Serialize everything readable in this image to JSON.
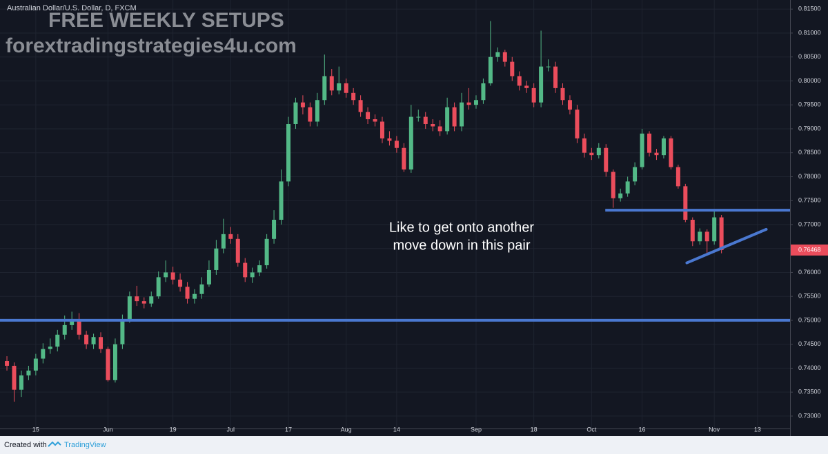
{
  "chart_data": {
    "type": "candlestick",
    "title": "Australian Dollar/U.S. Dollar, D, FXCM",
    "watermark": [
      "FREE WEEKLY SETUPS",
      "forextradingstrategies4u.com"
    ],
    "annotation": [
      "Like to get onto another",
      "move down in this pair"
    ],
    "footer": {
      "created": "Created with",
      "brand": "TradingView"
    },
    "up_color": "#53b987",
    "down_color": "#eb4d5c",
    "line_color": "#4a78d0",
    "xlim": [
      -0.96,
      108.5
    ],
    "ylim": [
      0.7274,
      0.8169
    ],
    "xticks": [
      {
        "value": 4,
        "label": "15"
      },
      {
        "value": 14,
        "label": "Jun"
      },
      {
        "value": 23,
        "label": "19"
      },
      {
        "value": 31,
        "label": "Jul"
      },
      {
        "value": 39,
        "label": "17"
      },
      {
        "value": 47,
        "label": "Aug"
      },
      {
        "value": 54,
        "label": "14"
      },
      {
        "value": 65,
        "label": "Sep"
      },
      {
        "value": 73,
        "label": "18"
      },
      {
        "value": 81,
        "label": "Oct"
      },
      {
        "value": 88,
        "label": "16"
      },
      {
        "value": 98,
        "label": "Nov"
      },
      {
        "value": 104,
        "label": "13"
      }
    ],
    "yticks": [
      {
        "value": 0.73,
        "label": "0.73000"
      },
      {
        "value": 0.735,
        "label": "0.73500"
      },
      {
        "value": 0.74,
        "label": "0.74000"
      },
      {
        "value": 0.745,
        "label": "0.74500"
      },
      {
        "value": 0.75,
        "label": "0.75000"
      },
      {
        "value": 0.755,
        "label": "0.75500"
      },
      {
        "value": 0.76,
        "label": "0.76000"
      },
      {
        "value": 0.765,
        "label": "0.76500"
      },
      {
        "value": 0.77,
        "label": "0.77000"
      },
      {
        "value": 0.775,
        "label": "0.77500"
      },
      {
        "value": 0.78,
        "label": "0.78000"
      },
      {
        "value": 0.785,
        "label": "0.78500"
      },
      {
        "value": 0.79,
        "label": "0.79000"
      },
      {
        "value": 0.795,
        "label": "0.79500"
      },
      {
        "value": 0.8,
        "label": "0.80000"
      },
      {
        "value": 0.805,
        "label": "0.80500"
      },
      {
        "value": 0.81,
        "label": "0.81000"
      },
      {
        "value": 0.815,
        "label": "0.81500"
      }
    ],
    "grid": true,
    "open": [
      0.7415,
      0.7405,
      0.7355,
      0.7385,
      0.7395,
      0.742,
      0.744,
      0.7445,
      0.747,
      0.749,
      0.75,
      0.747,
      0.745,
      0.7465,
      0.744,
      0.7375,
      0.745,
      0.75,
      0.755,
      0.754,
      0.7535,
      0.755,
      0.759,
      0.76,
      0.7585,
      0.757,
      0.7545,
      0.7555,
      0.7575,
      0.7605,
      0.765,
      0.768,
      0.767,
      0.762,
      0.759,
      0.76,
      0.7615,
      0.767,
      0.771,
      0.779,
      0.791,
      0.7955,
      0.7945,
      0.7915,
      0.796,
      0.801,
      0.798,
      0.7995,
      0.7975,
      0.796,
      0.7935,
      0.792,
      0.7915,
      0.788,
      0.7875,
      0.786,
      0.7815,
      0.7925,
      0.7925,
      0.791,
      0.7905,
      0.7895,
      0.7945,
      0.7905,
      0.7955,
      0.795,
      0.796,
      0.7995,
      0.805,
      0.806,
      0.804,
      0.801,
      0.799,
      0.7985,
      0.7955,
      0.803,
      0.803,
      0.7985,
      0.796,
      0.794,
      0.788,
      0.785,
      0.7845,
      0.786,
      0.781,
      0.7755,
      0.7765,
      0.779,
      0.782,
      0.789,
      0.785,
      0.7845,
      0.788,
      0.782,
      0.778,
      0.771,
      0.7665,
      0.7685,
      0.7665,
      0.7715
    ],
    "high": [
      0.7425,
      0.7412,
      0.7395,
      0.7405,
      0.743,
      0.7452,
      0.7462,
      0.748,
      0.751,
      0.7518,
      0.7515,
      0.7478,
      0.7472,
      0.7475,
      0.7445,
      0.7462,
      0.7512,
      0.756,
      0.7572,
      0.7548,
      0.756,
      0.7602,
      0.7625,
      0.7612,
      0.7598,
      0.758,
      0.7565,
      0.759,
      0.7625,
      0.7668,
      0.7712,
      0.7695,
      0.768,
      0.763,
      0.761,
      0.7625,
      0.768,
      0.773,
      0.7815,
      0.7925,
      0.7965,
      0.797,
      0.7955,
      0.7975,
      0.8055,
      0.8025,
      0.803,
      0.8005,
      0.7985,
      0.797,
      0.7945,
      0.793,
      0.7925,
      0.7895,
      0.7885,
      0.787,
      0.795,
      0.794,
      0.7935,
      0.792,
      0.7918,
      0.7965,
      0.7955,
      0.7975,
      0.7985,
      0.797,
      0.8005,
      0.8125,
      0.807,
      0.8065,
      0.805,
      0.802,
      0.8,
      0.7995,
      0.8105,
      0.8045,
      0.804,
      0.7995,
      0.797,
      0.795,
      0.789,
      0.786,
      0.787,
      0.7868,
      0.7815,
      0.7775,
      0.78,
      0.783,
      0.79,
      0.7895,
      0.7858,
      0.7885,
      0.7885,
      0.7825,
      0.7785,
      0.7715,
      0.7692,
      0.769,
      0.7728,
      0.772
    ],
    "low": [
      0.7395,
      0.733,
      0.734,
      0.7375,
      0.7385,
      0.741,
      0.743,
      0.7435,
      0.746,
      0.748,
      0.746,
      0.744,
      0.744,
      0.7432,
      0.7372,
      0.737,
      0.744,
      0.7495,
      0.753,
      0.7525,
      0.7528,
      0.7545,
      0.758,
      0.7575,
      0.756,
      0.7535,
      0.7535,
      0.7545,
      0.757,
      0.7595,
      0.764,
      0.766,
      0.7612,
      0.758,
      0.7578,
      0.7592,
      0.7608,
      0.766,
      0.77,
      0.778,
      0.79,
      0.793,
      0.7905,
      0.7905,
      0.795,
      0.797,
      0.7972,
      0.7965,
      0.795,
      0.7925,
      0.791,
      0.7905,
      0.787,
      0.7865,
      0.785,
      0.781,
      0.7808,
      0.7915,
      0.79,
      0.7895,
      0.7885,
      0.7888,
      0.7895,
      0.7895,
      0.794,
      0.7942,
      0.7952,
      0.799,
      0.804,
      0.803,
      0.8,
      0.798,
      0.7975,
      0.7945,
      0.7945,
      0.802,
      0.7975,
      0.795,
      0.793,
      0.787,
      0.784,
      0.7835,
      0.7838,
      0.78,
      0.7735,
      0.7748,
      0.7758,
      0.7782,
      0.7815,
      0.7842,
      0.7835,
      0.7838,
      0.7815,
      0.7775,
      0.7705,
      0.7655,
      0.7658,
      0.764,
      0.7658,
      0.764
    ],
    "close": [
      0.7405,
      0.7355,
      0.7385,
      0.7395,
      0.742,
      0.744,
      0.7445,
      0.747,
      0.749,
      0.75,
      0.747,
      0.745,
      0.7465,
      0.744,
      0.7375,
      0.745,
      0.75,
      0.755,
      0.754,
      0.7535,
      0.755,
      0.759,
      0.76,
      0.7585,
      0.757,
      0.7545,
      0.7555,
      0.7575,
      0.7605,
      0.765,
      0.768,
      0.767,
      0.762,
      0.759,
      0.76,
      0.7615,
      0.767,
      0.771,
      0.779,
      0.791,
      0.7955,
      0.7945,
      0.7915,
      0.796,
      0.801,
      0.798,
      0.7995,
      0.7975,
      0.796,
      0.7935,
      0.792,
      0.7915,
      0.788,
      0.7875,
      0.786,
      0.7815,
      0.7925,
      0.7925,
      0.791,
      0.7905,
      0.7895,
      0.7945,
      0.7905,
      0.7955,
      0.795,
      0.796,
      0.7995,
      0.805,
      0.806,
      0.804,
      0.801,
      0.799,
      0.7985,
      0.7955,
      0.803,
      0.803,
      0.7985,
      0.796,
      0.794,
      0.788,
      0.785,
      0.7845,
      0.786,
      0.781,
      0.7755,
      0.7765,
      0.779,
      0.782,
      0.789,
      0.785,
      0.7845,
      0.788,
      0.782,
      0.778,
      0.771,
      0.7665,
      0.7685,
      0.7665,
      0.7715,
      0.76468
    ],
    "levels": [
      {
        "y": 0.75,
        "x": [
          -0.96,
          108.5
        ]
      },
      {
        "y": 0.773,
        "x": [
          82.9,
          108.5
        ]
      }
    ],
    "trendline": {
      "x": [
        94.2,
        105.2
      ],
      "y": [
        0.762,
        0.769
      ]
    }
  }
}
